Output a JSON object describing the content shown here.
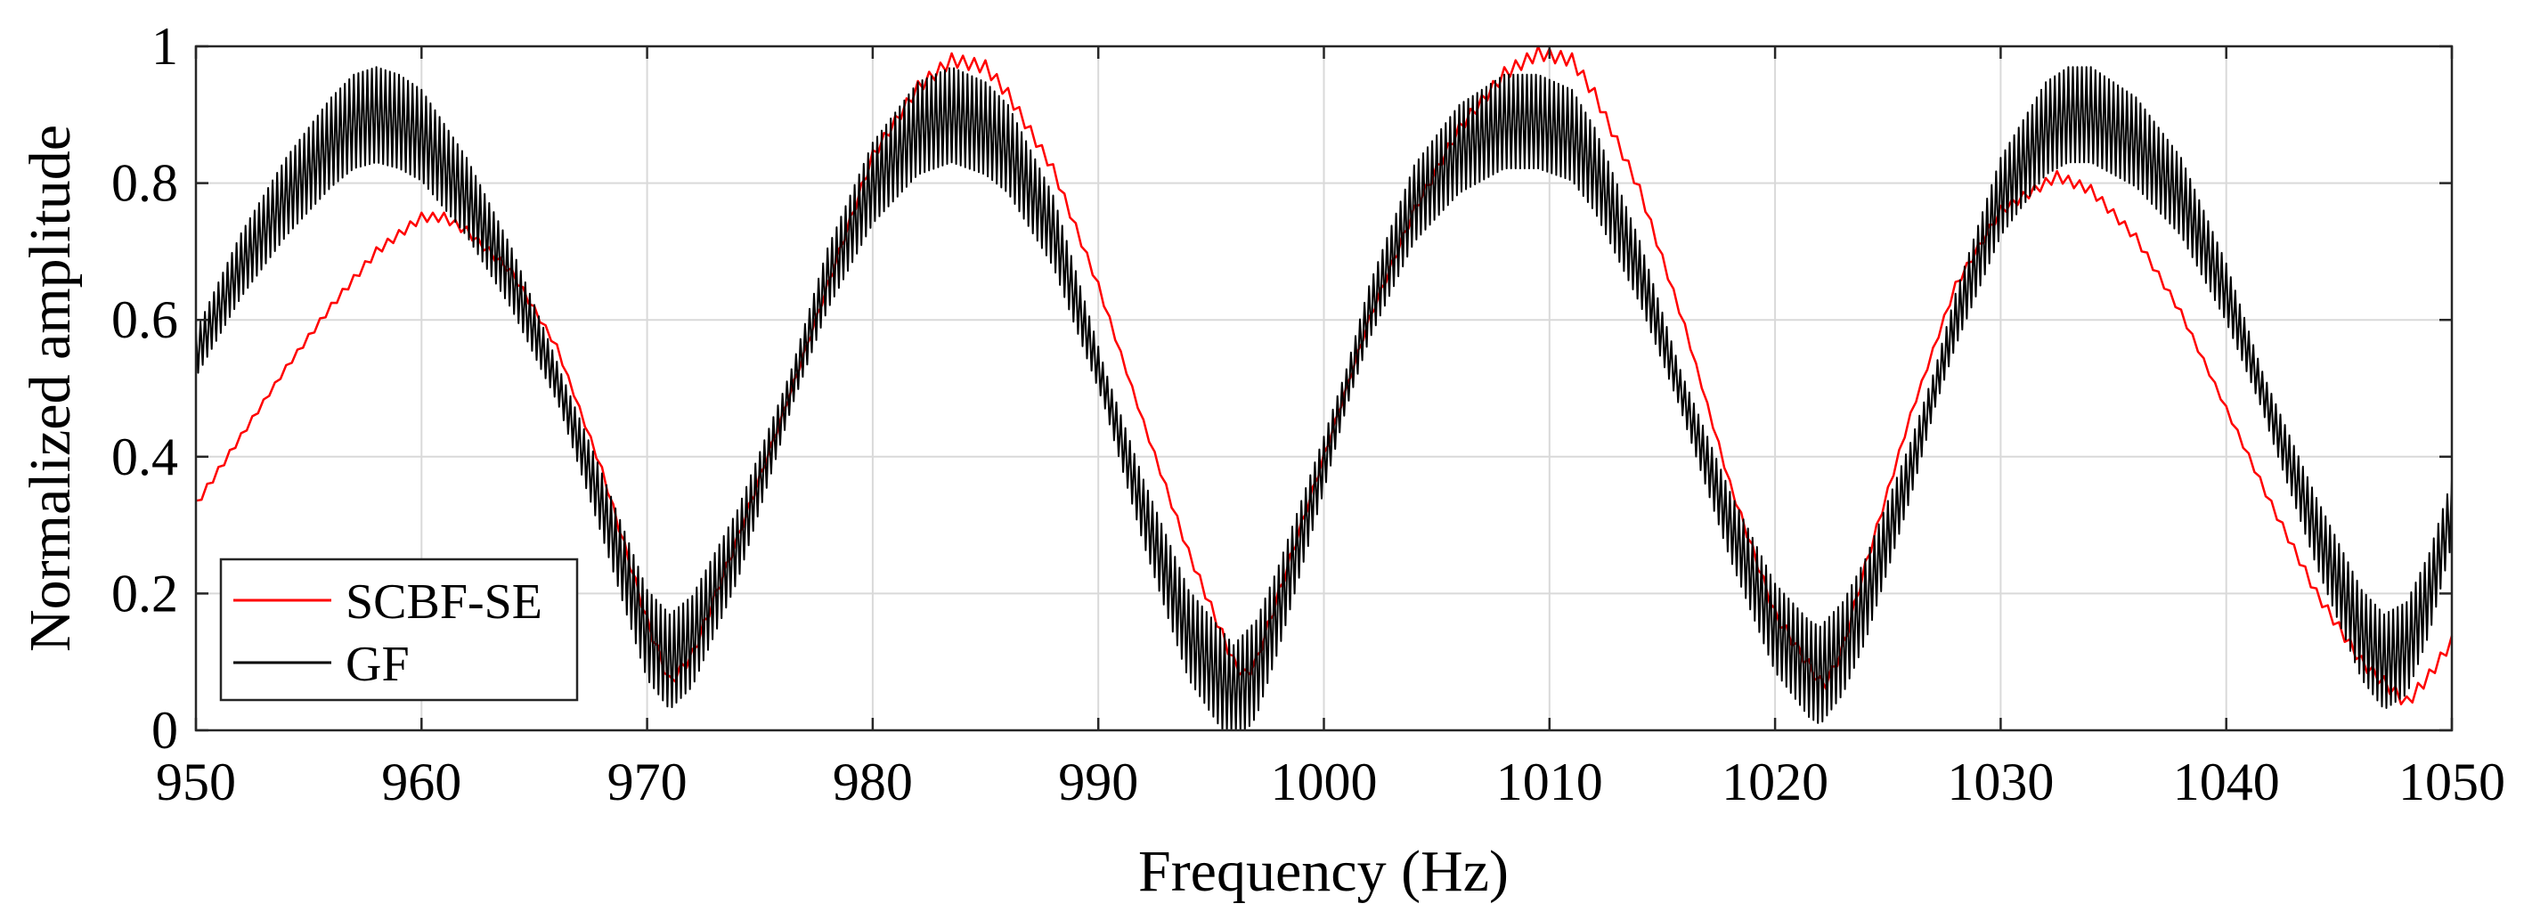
{
  "chart_data": {
    "type": "line",
    "title": "",
    "xlabel": "Frequency (Hz)",
    "ylabel": "Normalized amplitude",
    "xlim": [
      950,
      1050
    ],
    "ylim": [
      0,
      1
    ],
    "xticks": [
      950,
      960,
      970,
      980,
      990,
      1000,
      1010,
      1020,
      1030,
      1040,
      1050
    ],
    "yticks": [
      0,
      0.2,
      0.4,
      0.6,
      0.8,
      1
    ],
    "ytick_labels": [
      "0",
      "0.2",
      "0.4",
      "0.6",
      "0.8",
      "1"
    ],
    "grid": true,
    "legend_position": "bottom-left",
    "series": [
      {
        "name": "SCBF-SE",
        "color": "#ff0000",
        "oscillation": 0.01,
        "x": [
          950,
          952,
          954,
          956,
          958,
          960,
          961,
          962,
          964,
          966,
          968,
          970,
          971,
          972,
          974,
          976,
          978,
          980,
          982,
          983.5,
          985,
          986,
          988,
          990,
          992,
          994,
          996,
          996.5,
          997,
          998,
          1000,
          1002,
          1004,
          1006,
          1008,
          1009.5,
          1011,
          1012,
          1014,
          1016,
          1018,
          1020,
          1022,
          1022.3,
          1023,
          1024,
          1026,
          1028,
          1030,
          1032.5,
          1034,
          1036,
          1038,
          1040,
          1042,
          1044,
          1046,
          1048,
          1049,
          1050
        ],
        "y": [
          0.33,
          0.43,
          0.53,
          0.62,
          0.7,
          0.75,
          0.75,
          0.73,
          0.67,
          0.56,
          0.38,
          0.16,
          0.07,
          0.11,
          0.28,
          0.46,
          0.65,
          0.84,
          0.94,
          0.98,
          0.97,
          0.93,
          0.82,
          0.65,
          0.45,
          0.26,
          0.1,
          0.08,
          0.1,
          0.2,
          0.4,
          0.6,
          0.76,
          0.88,
          0.96,
          0.99,
          0.98,
          0.93,
          0.79,
          0.59,
          0.36,
          0.17,
          0.07,
          0.07,
          0.12,
          0.24,
          0.46,
          0.65,
          0.76,
          0.81,
          0.79,
          0.72,
          0.61,
          0.47,
          0.33,
          0.2,
          0.1,
          0.04,
          0.08,
          0.13
        ]
      },
      {
        "name": "GF",
        "color": "#000000",
        "oscillation": 0.08,
        "x": [
          950,
          952,
          954,
          956,
          957,
          958,
          959,
          960,
          962,
          964,
          966,
          968,
          970,
          971,
          972,
          974,
          976,
          978,
          980,
          982,
          983.5,
          985,
          986,
          988,
          990,
          992,
          994,
          996,
          997,
          998,
          1000,
          1002,
          1004,
          1006,
          1008,
          1009.5,
          1011,
          1012,
          1014,
          1016,
          1018,
          1020,
          1021.5,
          1022,
          1023,
          1024,
          1026,
          1028,
          1030,
          1032,
          1033,
          1034,
          1036,
          1038,
          1040,
          1042,
          1044,
          1046,
          1047,
          1048,
          1049,
          1050
        ],
        "y": [
          0.55,
          0.68,
          0.78,
          0.86,
          0.89,
          0.9,
          0.89,
          0.87,
          0.78,
          0.66,
          0.51,
          0.33,
          0.14,
          0.1,
          0.13,
          0.27,
          0.46,
          0.66,
          0.8,
          0.88,
          0.9,
          0.88,
          0.85,
          0.73,
          0.53,
          0.32,
          0.14,
          0.05,
          0.09,
          0.18,
          0.39,
          0.61,
          0.77,
          0.85,
          0.89,
          0.89,
          0.87,
          0.82,
          0.67,
          0.48,
          0.3,
          0.15,
          0.09,
          0.08,
          0.12,
          0.19,
          0.38,
          0.6,
          0.78,
          0.88,
          0.9,
          0.9,
          0.86,
          0.78,
          0.64,
          0.46,
          0.29,
          0.14,
          0.1,
          0.12,
          0.2,
          0.32
        ]
      }
    ]
  }
}
